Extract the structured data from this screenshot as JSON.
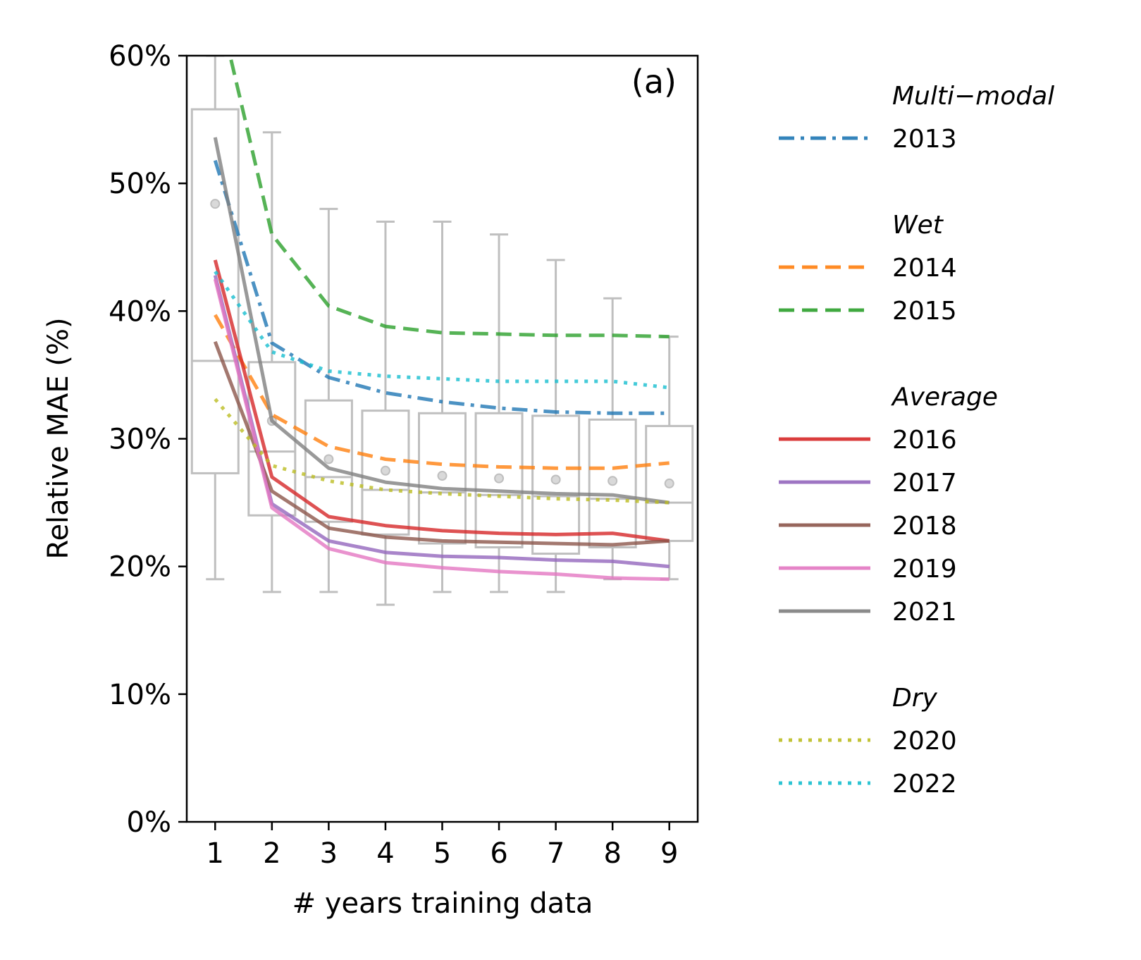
{
  "chart_data": {
    "type": "line",
    "panel_label": "(a)",
    "xlabel": "# years training data",
    "ylabel": "Relative MAE (%)",
    "x": [
      1,
      2,
      3,
      4,
      5,
      6,
      7,
      8,
      9
    ],
    "xticks": [
      "1",
      "2",
      "3",
      "4",
      "5",
      "6",
      "7",
      "8",
      "9"
    ],
    "ylim": [
      0,
      60
    ],
    "yticks": [
      "0%",
      "10%",
      "20%",
      "30%",
      "40%",
      "50%",
      "60%"
    ],
    "grid": false,
    "legend_position": "outside-right",
    "boxplots": {
      "color": "#bfbfbf",
      "stats": [
        {
          "x": 1,
          "whislo": 19,
          "q1": 27.3,
          "med": 36.1,
          "q3": 55.8,
          "whishi": 60,
          "mean": 48.4
        },
        {
          "x": 2,
          "whislo": 18,
          "q1": 24,
          "med": 29,
          "q3": 36,
          "whishi": 54,
          "mean": 31.4
        },
        {
          "x": 3,
          "whislo": 18,
          "q1": 23.5,
          "med": 27,
          "q3": 33,
          "whishi": 48,
          "mean": 28.4
        },
        {
          "x": 4,
          "whislo": 17,
          "q1": 22.5,
          "med": 26,
          "q3": 32.2,
          "whishi": 47,
          "mean": 27.5
        },
        {
          "x": 5,
          "whislo": 18,
          "q1": 21.8,
          "med": 25.8,
          "q3": 32,
          "whishi": 47,
          "mean": 27.1
        },
        {
          "x": 6,
          "whislo": 18,
          "q1": 21.5,
          "med": 25.6,
          "q3": 32,
          "whishi": 46,
          "mean": 26.9
        },
        {
          "x": 7,
          "whislo": 18,
          "q1": 21,
          "med": 25.5,
          "q3": 31.8,
          "whishi": 44,
          "mean": 26.8
        },
        {
          "x": 8,
          "whislo": 19,
          "q1": 21.5,
          "med": 25.3,
          "q3": 31.5,
          "whishi": 41,
          "mean": 26.7
        },
        {
          "x": 9,
          "whislo": 19,
          "q1": 22,
          "med": 25,
          "q3": 31,
          "whishi": 38,
          "mean": 26.5
        }
      ]
    },
    "groups": [
      {
        "header": "Multi−modal",
        "series": [
          "2013"
        ]
      },
      {
        "header": "Wet",
        "series": [
          "2014",
          "2015"
        ]
      },
      {
        "header": "Average",
        "series": [
          "2016",
          "2017",
          "2018",
          "2019",
          "2021"
        ]
      },
      {
        "header": "Dry",
        "series": [
          "2020",
          "2022"
        ]
      }
    ],
    "series": [
      {
        "name": "2013",
        "color": "#1f77b4",
        "dash": "dashdot",
        "values": [
          51.8,
          37.5,
          34.8,
          33.6,
          32.9,
          32.4,
          32.1,
          32.0,
          32.0
        ]
      },
      {
        "name": "2014",
        "color": "#ff7f0e",
        "dash": "dashed",
        "values": [
          39.7,
          31.9,
          29.4,
          28.4,
          28.0,
          27.8,
          27.7,
          27.7,
          28.1
        ]
      },
      {
        "name": "2015",
        "color": "#2ca02c",
        "dash": "dashed",
        "values": [
          65.0,
          46.0,
          40.4,
          38.8,
          38.3,
          38.2,
          38.1,
          38.1,
          38.0
        ]
      },
      {
        "name": "2016",
        "color": "#d62728",
        "dash": "solid",
        "values": [
          44.0,
          27.0,
          23.9,
          23.2,
          22.8,
          22.6,
          22.5,
          22.6,
          22.0
        ]
      },
      {
        "name": "2017",
        "color": "#9467bd",
        "dash": "solid",
        "values": [
          42.8,
          24.9,
          22.0,
          21.1,
          20.8,
          20.7,
          20.5,
          20.4,
          20.0
        ]
      },
      {
        "name": "2018",
        "color": "#8c564b",
        "dash": "solid",
        "values": [
          37.6,
          25.9,
          23.0,
          22.3,
          22.0,
          21.9,
          21.8,
          21.7,
          22.0
        ]
      },
      {
        "name": "2019",
        "color": "#e377c2",
        "dash": "solid",
        "values": [
          42.5,
          24.6,
          21.4,
          20.3,
          19.9,
          19.6,
          19.4,
          19.1,
          19.0
        ]
      },
      {
        "name": "2021",
        "color": "#7f7f7f",
        "dash": "solid",
        "values": [
          53.6,
          31.4,
          27.7,
          26.6,
          26.1,
          25.9,
          25.7,
          25.6,
          25.0
        ]
      },
      {
        "name": "2020",
        "color": "#bcbd22",
        "dash": "dotted",
        "values": [
          33.1,
          27.9,
          26.7,
          26.0,
          25.7,
          25.5,
          25.3,
          25.2,
          25.0
        ]
      },
      {
        "name": "2022",
        "color": "#17becf",
        "dash": "dotted",
        "values": [
          43.1,
          36.8,
          35.3,
          34.9,
          34.7,
          34.5,
          34.5,
          34.5,
          34.0
        ]
      }
    ]
  }
}
